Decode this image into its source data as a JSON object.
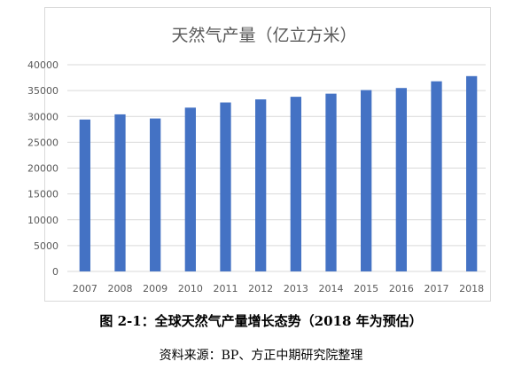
{
  "chart_data": {
    "type": "bar",
    "title": "天然气产量（亿立方米）",
    "xlabel": "",
    "ylabel": "",
    "categories": [
      "2007",
      "2008",
      "2009",
      "2010",
      "2011",
      "2012",
      "2013",
      "2014",
      "2015",
      "2016",
      "2017",
      "2018"
    ],
    "values": [
      29400,
      30400,
      29600,
      31700,
      32700,
      33300,
      33800,
      34400,
      35100,
      35500,
      36800,
      37800
    ],
    "ylim": [
      0,
      40000
    ],
    "yticks": [
      0,
      5000,
      10000,
      15000,
      20000,
      25000,
      30000,
      35000,
      40000
    ],
    "grid": true,
    "legend": "none",
    "bar_color": "#4472c4",
    "grid_color": "#d9d9d9",
    "text_color": "#595959"
  },
  "figure": {
    "caption": "图 2-1：全球天然气产量增长态势（2018 年为预估）",
    "source": "资料来源：BP、方正中期研究院整理"
  }
}
